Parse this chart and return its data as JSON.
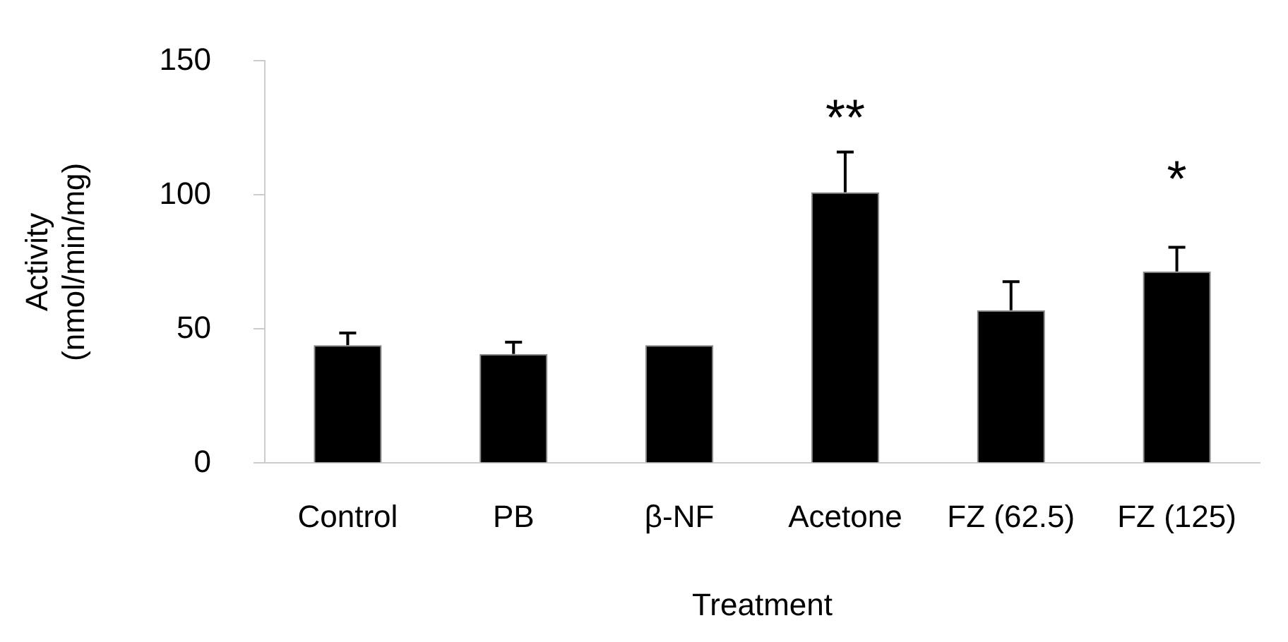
{
  "chart_data": {
    "type": "bar",
    "xlabel": "Treatment",
    "ylabel": "Activity\n(nmol/min/mg)",
    "categories": [
      "Control",
      "PB",
      "β-NF",
      "Acetone",
      "FZ (62.5)",
      "FZ (125)"
    ],
    "values": [
      44,
      40.7,
      44,
      101,
      57,
      71.5
    ],
    "errors": [
      [
        44,
        48.5
      ],
      [
        40.7,
        45.1
      ],
      null,
      [
        101,
        116
      ],
      [
        57,
        67.7
      ],
      [
        71.5,
        80.5
      ]
    ],
    "color": "#000000",
    "ylim": [
      0,
      150
    ],
    "yticks": [
      0,
      50,
      100,
      150
    ],
    "grid": false,
    "legend": false,
    "annotations": [
      {
        "text": "**",
        "x": "Acetone",
        "y": 116
      },
      {
        "text": "*",
        "x": "FZ (125)",
        "y": 80.5
      }
    ]
  }
}
